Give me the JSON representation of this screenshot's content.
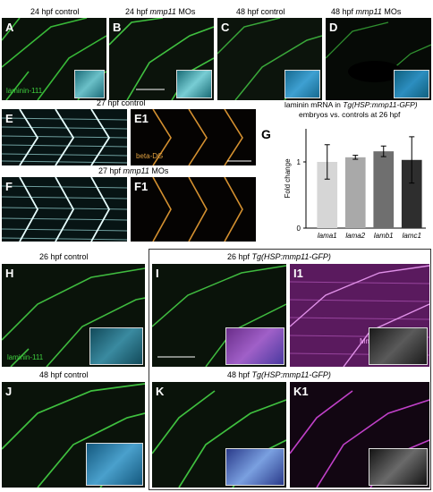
{
  "panels": {
    "A": {
      "letter": "A",
      "title": "24 hpf control",
      "stain": "laminin-111"
    },
    "B": {
      "letter": "B",
      "title_pre": "24 hpf ",
      "title_it": "mmp11",
      "title_post": " MOs"
    },
    "C": {
      "letter": "C",
      "title": "48 hpf control"
    },
    "D": {
      "letter": "D",
      "title_pre": "48 hpf ",
      "title_it": "mmp11",
      "title_post": " MOs"
    },
    "E": {
      "letter": "E",
      "title": "27 hpf control"
    },
    "E1": {
      "letter": "E1",
      "stain": "beta-DG"
    },
    "F": {
      "letter": "F",
      "title_pre": "27 hpf ",
      "title_it": "mmp11",
      "title_post": " MOs"
    },
    "F1": {
      "letter": "F1"
    },
    "H": {
      "letter": "H",
      "title": "26 hpf control",
      "stain": "laminin-111"
    },
    "I": {
      "letter": "I",
      "title_pre": "26 hpf ",
      "title_it": "Tg(HSP:mmp11-GFP)"
    },
    "I1": {
      "letter": "I1",
      "stain": "Mmp11-GFP"
    },
    "J": {
      "letter": "J",
      "title": "48 hpf control"
    },
    "K": {
      "letter": "K",
      "title_pre": "48 hpf ",
      "title_it": "Tg(HSP:mmp11-GFP)"
    },
    "K1": {
      "letter": "K1"
    }
  },
  "chart_data": {
    "type": "bar",
    "letter": "G",
    "title_line1": "laminin mRNA in ",
    "title_line1_it": "Tg(HSP:mmp11-GFP)",
    "title_line2": "embryos vs. controls at 26 hpf",
    "ylabel": "Fold change",
    "ylim": [
      0,
      1.5
    ],
    "yticks": [
      "0",
      "1"
    ],
    "categories": [
      "lama1",
      "lama2",
      "lamb1",
      "lamc1"
    ],
    "values": [
      1.0,
      1.07,
      1.16,
      1.03
    ],
    "errors": [
      0.26,
      0.03,
      0.08,
      0.35
    ],
    "colors": [
      "#d6d6d6",
      "#a9a9a9",
      "#6f6f6f",
      "#2e2e2e"
    ]
  }
}
